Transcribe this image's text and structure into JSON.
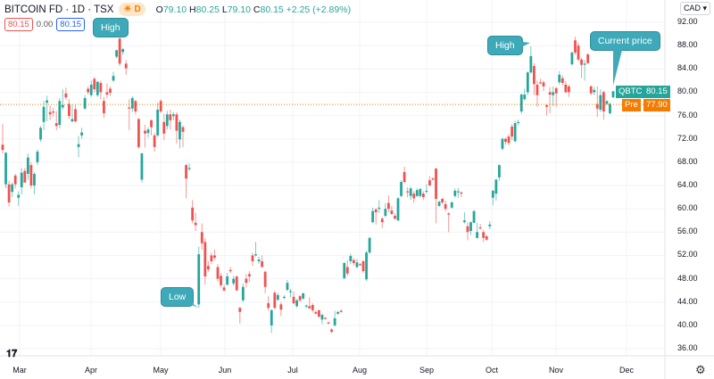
{
  "header": {
    "symbol": "BITCOIN FD · 1D · TSX",
    "badge_letter": "D",
    "badge_icon": "sun-icon",
    "open_label": "O",
    "open": "79.10",
    "high_label": "H",
    "high": "80.25",
    "low_label": "L",
    "low": "79.10",
    "close_label": "C",
    "close": "80.15",
    "change": "+2.25 (+2.89%)",
    "bid": "80.15",
    "spread": "0.00",
    "ask": "80.15"
  },
  "currency": "CAD",
  "price_labels": {
    "last_tag": "QBTC",
    "last_value": "80.15",
    "pre_tag": "Pre",
    "pre_value": "77.90"
  },
  "annotations": {
    "high1": "High",
    "low": "Low",
    "high2": "High",
    "current": "Current price"
  },
  "colors": {
    "up": "#26a69a",
    "down": "#ef5350",
    "pre": "#f57c00",
    "callout": "#3ea9b8",
    "bid": "#ef5350",
    "ask": "#2962ff"
  },
  "chart_data": {
    "type": "candlestick",
    "title": "",
    "xlabel": "",
    "ylabel": "",
    "ylim": [
      36,
      92
    ],
    "y_ticks": [
      "92.00",
      "88.00",
      "84.00",
      "80.00",
      "76.00",
      "72.00",
      "68.00",
      "64.00",
      "60.00",
      "56.00",
      "52.00",
      "48.00",
      "44.00",
      "40.00",
      "36.00"
    ],
    "x_ticks": [
      "Mar",
      "Apr",
      "May",
      "Jun",
      "Jul",
      "Aug",
      "Sep",
      "Oct",
      "Nov",
      "Dec"
    ],
    "grid": true,
    "last_price": 80.15,
    "pre_market_price": 77.9,
    "ohlc": [
      [
        71,
        74.5,
        69.5,
        70.1
      ],
      [
        64.2,
        69.8,
        63.5,
        69.6
      ],
      [
        64.2,
        64.8,
        60.4,
        61.1
      ],
      [
        62.9,
        64.5,
        62,
        64.2
      ],
      [
        65.7,
        66,
        63.5,
        64.2
      ],
      [
        61.9,
        63,
        60.5,
        62.4
      ],
      [
        63.7,
        67,
        62.5,
        66.2
      ],
      [
        66.5,
        67,
        64.5,
        64.5
      ],
      [
        66,
        69.5,
        65,
        68.8
      ],
      [
        67.5,
        68,
        63.5,
        64
      ],
      [
        64,
        66.3,
        62.5,
        66
      ],
      [
        68,
        70.2,
        67.5,
        69.8
      ],
      [
        71.9,
        74.2,
        71.5,
        73.9
      ],
      [
        74.9,
        78.5,
        73.5,
        77.5
      ],
      [
        78.2,
        79.4,
        75,
        78.6
      ],
      [
        76.6,
        77.7,
        75.2,
        76.2
      ],
      [
        76.7,
        77.3,
        75.8,
        76.5
      ],
      [
        74.7,
        76.8,
        73.5,
        74.2
      ],
      [
        74.4,
        79,
        73.8,
        78.5
      ],
      [
        77.4,
        80.5,
        77,
        77.8
      ],
      [
        79.8,
        80.8,
        78.7,
        79.1
      ],
      [
        78,
        78.8,
        75.4,
        75.9
      ],
      [
        75,
        77.8,
        74.8,
        75.4
      ],
      [
        77.1,
        78,
        74.8,
        75
      ],
      [
        70.6,
        72.5,
        68.8,
        71.1
      ],
      [
        72.6,
        73.9,
        72,
        73.1
      ],
      [
        77.2,
        79.5,
        77,
        79
      ],
      [
        80.6,
        81,
        79.6,
        80
      ],
      [
        79.5,
        82,
        79.2,
        81.3
      ],
      [
        82.3,
        82.6,
        80,
        80.5
      ],
      [
        79.5,
        81.9,
        79.2,
        81.8
      ],
      [
        81.6,
        82,
        78.8,
        80
      ],
      [
        78.5,
        79.2,
        75.6,
        76.4
      ],
      [
        80,
        81.5,
        79,
        79.6
      ],
      [
        80.6,
        81,
        79.4,
        79.9
      ],
      [
        82,
        83.5,
        81.8,
        82.8
      ],
      [
        86.1,
        87.3,
        85.8,
        87.2
      ],
      [
        89.2,
        89.5,
        84.5,
        84.9
      ],
      [
        86.9,
        87.6,
        86.4,
        87.4
      ],
      [
        84.9,
        85.5,
        83,
        84.1
      ],
      [
        77.4,
        78.8,
        73.5,
        77.2
      ],
      [
        77.2,
        79.3,
        76.6,
        79
      ],
      [
        78.5,
        78.7,
        76.2,
        76.7
      ],
      [
        75.4,
        75.6,
        70.3,
        70.6
      ],
      [
        65,
        69.6,
        64.5,
        69.5
      ],
      [
        73.4,
        74.4,
        70.5,
        72.9
      ],
      [
        73,
        74,
        72.2,
        73.6
      ],
      [
        75.2,
        75.3,
        72.6,
        74
      ],
      [
        72.6,
        73,
        69.8,
        70.6
      ],
      [
        72.6,
        78.2,
        72.3,
        77
      ],
      [
        78.5,
        78.8,
        76.4,
        76.7
      ],
      [
        74.9,
        76.3,
        71.8,
        72.9
      ],
      [
        74.2,
        76.8,
        73.6,
        76.2
      ],
      [
        76.2,
        77,
        73.6,
        75.2
      ],
      [
        75.9,
        76.6,
        75.2,
        76.2
      ],
      [
        76.2,
        76.6,
        71.2,
        73.4
      ],
      [
        71.9,
        75.3,
        70.4,
        74.9
      ],
      [
        74,
        74.3,
        70.6,
        73.2
      ],
      [
        67.5,
        67.7,
        61.8,
        65.2
      ],
      [
        66.8,
        67.8,
        66.5,
        67
      ],
      [
        60.2,
        61.5,
        57.5,
        58
      ],
      [
        57.6,
        59.3,
        56.2,
        57.2
      ],
      [
        43.6,
        53.5,
        43,
        52.2
      ],
      [
        56,
        57.5,
        53,
        54.1
      ],
      [
        54.3,
        55,
        47,
        48.4
      ],
      [
        50.2,
        51,
        49.2,
        49.6
      ],
      [
        52,
        52.5,
        50.5,
        51
      ],
      [
        52,
        53,
        51.2,
        51.6
      ],
      [
        50,
        50.5,
        47.5,
        48
      ],
      [
        48.5,
        49,
        46.5,
        46.9
      ],
      [
        46.5,
        47,
        45.8,
        46
      ],
      [
        47,
        49,
        46.8,
        48.4
      ],
      [
        49.5,
        50,
        49,
        49.3
      ],
      [
        47.2,
        48.5,
        46.8,
        48
      ],
      [
        48.4,
        48.5,
        46,
        46
      ],
      [
        43,
        43.2,
        40.3,
        42.3
      ],
      [
        44.3,
        47.2,
        44,
        46.6
      ],
      [
        48,
        48.8,
        46.5,
        47.3
      ],
      [
        48.8,
        49.3,
        47.5,
        48.4
      ],
      [
        52,
        52.5,
        50.2,
        51
      ],
      [
        52,
        54.3,
        51.8,
        52.2
      ],
      [
        51,
        51.8,
        50.6,
        51.3
      ],
      [
        51,
        52,
        50,
        50
      ],
      [
        49.2,
        49.4,
        45.5,
        46.6
      ],
      [
        43.8,
        45,
        42.5,
        43
      ],
      [
        40,
        42.8,
        38.7,
        42.6
      ],
      [
        45.6,
        45.9,
        42.8,
        43
      ],
      [
        44.4,
        45.6,
        44.2,
        45.2
      ],
      [
        43.6,
        44,
        41.6,
        42.7
      ],
      [
        44.8,
        45.2,
        44.5,
        44.9
      ],
      [
        46.1,
        47.8,
        45.8,
        47.3
      ],
      [
        45.7,
        46.3,
        44.8,
        45.9
      ],
      [
        44.9,
        45.8,
        43.6,
        43.8
      ],
      [
        43.3,
        44.5,
        43,
        44.3
      ],
      [
        45,
        45.2,
        44,
        44.3
      ],
      [
        44.6,
        45.6,
        44.4,
        45.5
      ],
      [
        43.3,
        43.6,
        42.9,
        43.4
      ],
      [
        43.3,
        44.8,
        42.9,
        42.9
      ],
      [
        43.5,
        43.8,
        42.2,
        42.6
      ],
      [
        42.3,
        42.6,
        41.9,
        42
      ],
      [
        42.6,
        42.7,
        41.3,
        41.5
      ],
      [
        41,
        42,
        40.2,
        41.8
      ],
      [
        41.3,
        41.4,
        41,
        41.2
      ],
      [
        40.5,
        40.6,
        40.2,
        40.4
      ],
      [
        39.3,
        39.5,
        38.6,
        38.9
      ],
      [
        40,
        42.5,
        39.8,
        41.2
      ],
      [
        42,
        42.5,
        41.8,
        42.3
      ],
      [
        42.5,
        42.8,
        42.2,
        42.3
      ],
      [
        48.1,
        50.9,
        47.9,
        50.7
      ],
      [
        50,
        51.2,
        48.5,
        48.9
      ],
      [
        51,
        52.3,
        50.5,
        51.9
      ],
      [
        51.2,
        51.5,
        50.3,
        50.7
      ],
      [
        50,
        51.4,
        49.8,
        50.8
      ],
      [
        50.5,
        50.7,
        50.2,
        50.4
      ],
      [
        51,
        51.2,
        49,
        49.3
      ],
      [
        47.9,
        52.8,
        47.6,
        52.5
      ],
      [
        52.5,
        55.2,
        52.3,
        55
      ],
      [
        57.7,
        60.2,
        57.5,
        59.6
      ],
      [
        59.9,
        60.1,
        57.3,
        59.4
      ],
      [
        60,
        61.5,
        59.3,
        60.2
      ],
      [
        58.3,
        58.6,
        56.7,
        57.7
      ],
      [
        58.8,
        61,
        58.5,
        60
      ],
      [
        61,
        62.3,
        59.4,
        60
      ],
      [
        59.7,
        60.5,
        59,
        59.1
      ],
      [
        58.8,
        59.2,
        58.2,
        58.3
      ],
      [
        58,
        62,
        57.9,
        61.8
      ],
      [
        62.2,
        64.9,
        62,
        64.6
      ],
      [
        66.3,
        67.2,
        64.4,
        64.6
      ],
      [
        63,
        63.7,
        62,
        62.9
      ],
      [
        62.2,
        63.8,
        61.5,
        63.5
      ],
      [
        62.6,
        63,
        61,
        61.8
      ],
      [
        62.2,
        63.5,
        62,
        63.2
      ],
      [
        62.2,
        63.6,
        61.9,
        63.4
      ],
      [
        62.6,
        63,
        61.5,
        62
      ],
      [
        63,
        64.2,
        62.6,
        63.1
      ],
      [
        64.9,
        65.6,
        63.9,
        64
      ],
      [
        65.2,
        65.4,
        64.9,
        65
      ],
      [
        66.9,
        67,
        57.5,
        61.7
      ],
      [
        60.5,
        61.4,
        60.3,
        61.2
      ],
      [
        61.7,
        61.9,
        60.8,
        61.1
      ],
      [
        60.8,
        61.4,
        59.6,
        60
      ],
      [
        59.2,
        59.4,
        56,
        59
      ],
      [
        60.2,
        61.3,
        60,
        61.1
      ],
      [
        62.2,
        63.5,
        61.9,
        63.1
      ],
      [
        62.9,
        63.6,
        61.9,
        63
      ],
      [
        62.8,
        63,
        62,
        62.6
      ],
      [
        57.7,
        59.4,
        57.5,
        58
      ],
      [
        57,
        57.7,
        54.6,
        56
      ],
      [
        56.2,
        57.8,
        55.5,
        57.7
      ],
      [
        57.6,
        59.8,
        57.5,
        59.6
      ],
      [
        55,
        57.6,
        54.9,
        56
      ],
      [
        56.8,
        57.4,
        56.5,
        56.7
      ],
      [
        56,
        56.4,
        54.3,
        55
      ],
      [
        55.3,
        55.5,
        54.5,
        54.7
      ],
      [
        57,
        57.9,
        56.5,
        57.3
      ],
      [
        61.9,
        63.2,
        60.6,
        63.1
      ],
      [
        62.6,
        65.1,
        61.4,
        65
      ],
      [
        65.4,
        67.6,
        64.8,
        67.5
      ],
      [
        70.3,
        72.2,
        70,
        72
      ],
      [
        72,
        72.2,
        71,
        71.5
      ],
      [
        72.4,
        72.8,
        70.9,
        71.3
      ],
      [
        74.1,
        74.5,
        71.8,
        72.4
      ],
      [
        71.6,
        75.1,
        71.4,
        74.7
      ],
      [
        74.8,
        75.3,
        74.3,
        74.9
      ],
      [
        76.7,
        79.8,
        76.3,
        79.6
      ],
      [
        78.8,
        80.6,
        78.6,
        79.6
      ],
      [
        80,
        83.6,
        79.5,
        83.4
      ],
      [
        83.4,
        87.9,
        83.2,
        86.2
      ],
      [
        84.5,
        85,
        79.5,
        81.4
      ],
      [
        81.3,
        82,
        77.5,
        79.5
      ],
      [
        81.7,
        82.3,
        81.4,
        81.6
      ],
      [
        81.7,
        82,
        80.2,
        81
      ],
      [
        77.8,
        78,
        76,
        77.5
      ],
      [
        80,
        80.9,
        76.4,
        79.6
      ],
      [
        79.5,
        81,
        77.6,
        80
      ],
      [
        80.7,
        80.9,
        77.5,
        79.8
      ],
      [
        81.7,
        83.6,
        81.3,
        83
      ],
      [
        82.4,
        82.9,
        81.2,
        81.6
      ],
      [
        81.3,
        81.9,
        79.9,
        80
      ],
      [
        81,
        81.3,
        79.2,
        80
      ],
      [
        84.8,
        87,
        84.6,
        86.8
      ],
      [
        88.9,
        89.5,
        86.4,
        86.8
      ],
      [
        88,
        88.5,
        85.3,
        85.6
      ],
      [
        85.6,
        85.9,
        82.4,
        84.7
      ],
      [
        84.8,
        85.5,
        82,
        84.9
      ],
      [
        86.5,
        86.7,
        84.8,
        85
      ],
      [
        81,
        81.2,
        79.5,
        79.8
      ],
      [
        80,
        80.9,
        79.5,
        80.4
      ],
      [
        78,
        81,
        75.8,
        77.2
      ],
      [
        77,
        80.5,
        76.6,
        79.5
      ],
      [
        80,
        80.3,
        75.3,
        76.7
      ],
      [
        78,
        78.6,
        77.8,
        78.5
      ],
      [
        76.4,
        78.2,
        76.2,
        78
      ],
      [
        79.1,
        80.25,
        79.1,
        80.15
      ]
    ]
  }
}
